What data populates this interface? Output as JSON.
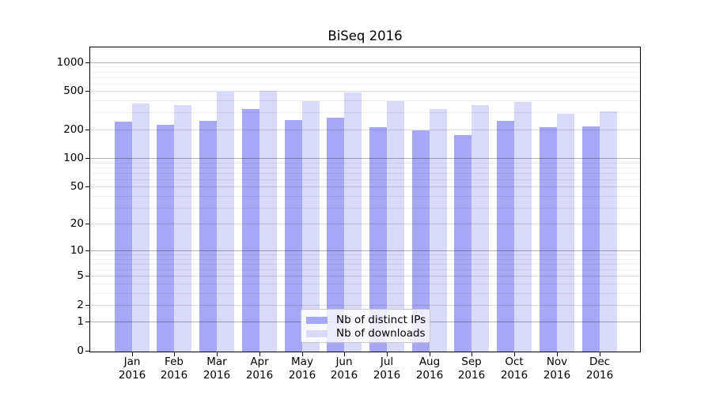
{
  "chart_data": {
    "type": "bar",
    "title": "BiSeq 2016",
    "x": {
      "categories": [
        "Jan",
        "Feb",
        "Mar",
        "Apr",
        "May",
        "Jun",
        "Jul",
        "Aug",
        "Sep",
        "Oct",
        "Nov",
        "Dec"
      ],
      "year_suffix": "2016"
    },
    "y_axis": {
      "scale": "log10(1+x)",
      "ticks": [
        1000,
        500,
        200,
        100,
        50,
        20,
        10,
        5,
        2,
        1,
        0
      ],
      "tick_labels": [
        "1000",
        "500",
        "200",
        "100",
        "50",
        "20",
        "10",
        "5",
        "2",
        "1",
        "0"
      ],
      "decade_ticks": [
        1,
        10,
        100,
        1000
      ],
      "ylim": [
        0,
        1450
      ],
      "grid": "horizontal major and minor, decade lines darker"
    },
    "series": [
      {
        "name": "Nb of distinct IPs",
        "color": "#a7a7f6",
        "values": [
          239,
          224,
          247,
          324,
          251,
          263,
          211,
          195,
          175,
          247,
          209,
          213
        ]
      },
      {
        "name": "Nb of downloads",
        "color": "#d9d9f9",
        "values": [
          372,
          360,
          495,
          504,
          394,
          488,
          394,
          328,
          356,
          389,
          289,
          310
        ]
      }
    ],
    "legend": {
      "position": "inside bottom-center"
    }
  }
}
